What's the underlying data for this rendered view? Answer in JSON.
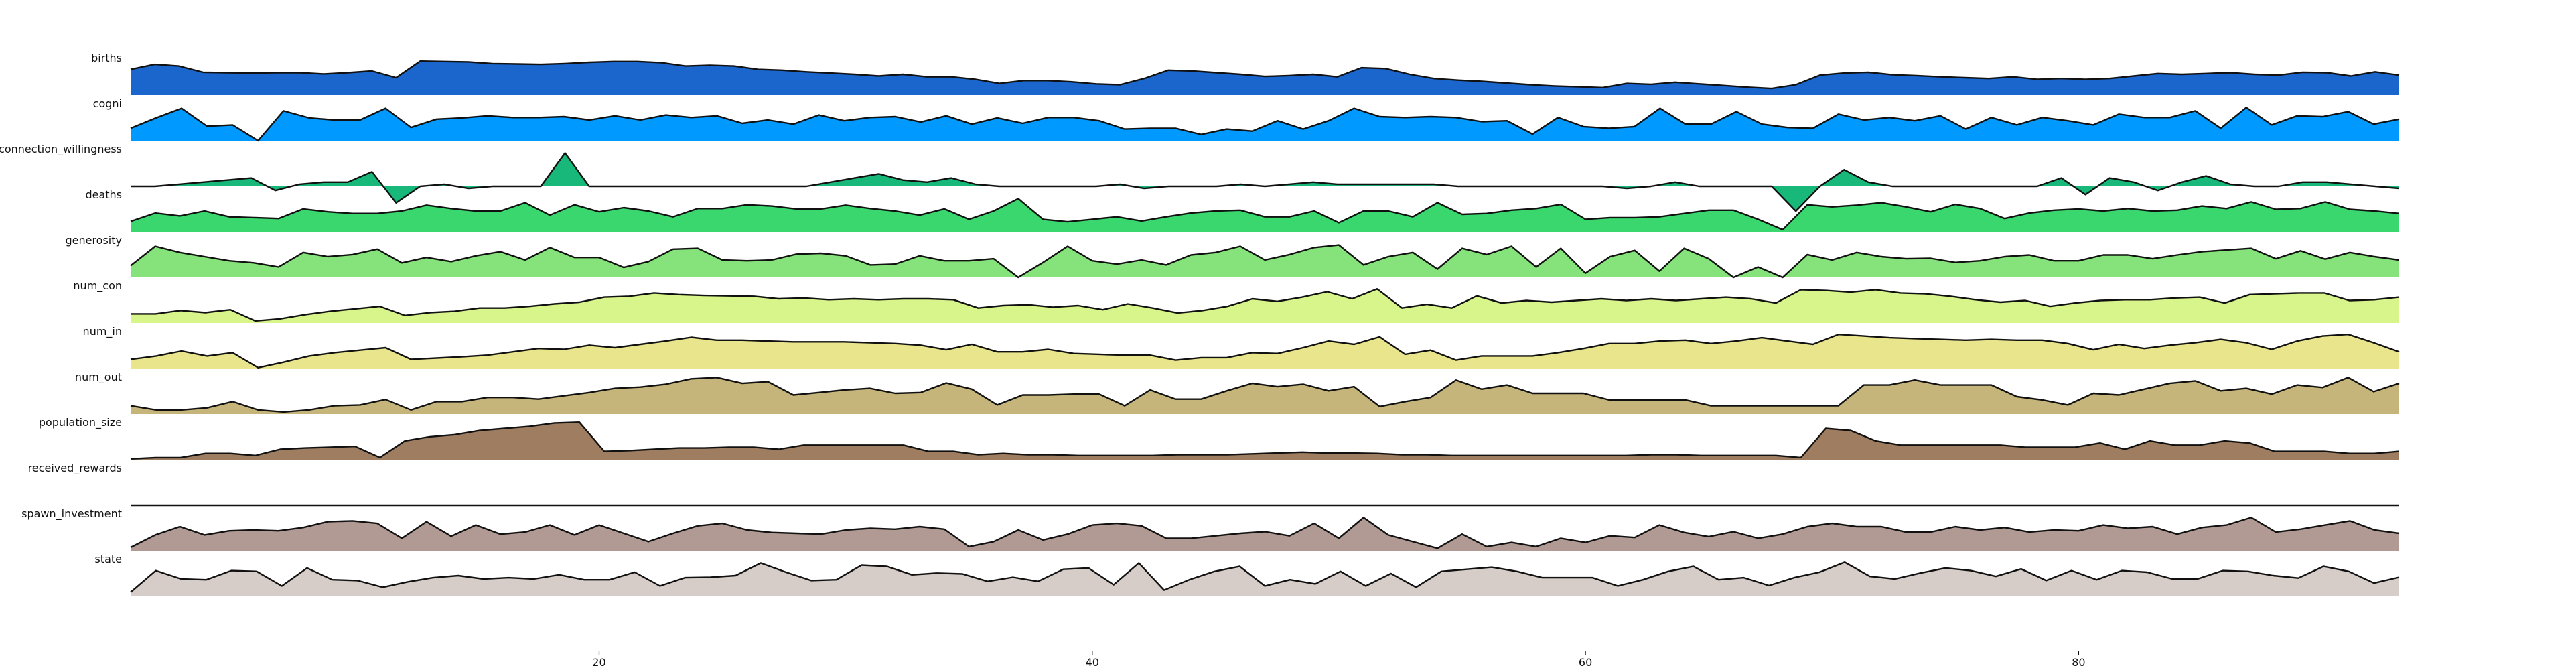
{
  "chart_data": {
    "type": "area",
    "layout": "ridgeline",
    "title": "",
    "xlabel": "",
    "ylabel": "",
    "x_range": [
      1,
      93
    ],
    "x_ticks": [
      20,
      40,
      60,
      80
    ],
    "grid": false,
    "legend": "none",
    "series": [
      {
        "name": "births",
        "color": "#1a66cc",
        "values": [
          0.62,
          0.74,
          0.7,
          0.55,
          0.54,
          0.53,
          0.54,
          0.54,
          0.51,
          0.54,
          0.58,
          0.42,
          0.82,
          0.81,
          0.8,
          0.76,
          0.75,
          0.74,
          0.76,
          0.79,
          0.81,
          0.81,
          0.78,
          0.7,
          0.72,
          0.7,
          0.62,
          0.6,
          0.56,
          0.53,
          0.5,
          0.46,
          0.5,
          0.44,
          0.44,
          0.38,
          0.28,
          0.35,
          0.35,
          0.32,
          0.27,
          0.25,
          0.4,
          0.6,
          0.58,
          0.54,
          0.5,
          0.45,
          0.47,
          0.5,
          0.44,
          0.66,
          0.64,
          0.5,
          0.4,
          0.36,
          0.33,
          0.29,
          0.25,
          0.22,
          0.2,
          0.18,
          0.28,
          0.26,
          0.31,
          0.27,
          0.23,
          0.19,
          0.16,
          0.25,
          0.48,
          0.53,
          0.55,
          0.49,
          0.47,
          0.44,
          0.42,
          0.4,
          0.44,
          0.38,
          0.4,
          0.38,
          0.4,
          0.46,
          0.52,
          0.5,
          0.52,
          0.54,
          0.5,
          0.48,
          0.55,
          0.54,
          0.46,
          0.56,
          0.48
        ]
      },
      {
        "name": "cogni",
        "color": "#0099ff",
        "values": [
          0.3,
          0.55,
          0.78,
          0.35,
          0.38,
          0.0,
          0.72,
          0.55,
          0.5,
          0.5,
          0.78,
          0.32,
          0.52,
          0.55,
          0.6,
          0.56,
          0.56,
          0.58,
          0.5,
          0.6,
          0.5,
          0.62,
          0.56,
          0.6,
          0.42,
          0.5,
          0.4,
          0.62,
          0.48,
          0.56,
          0.58,
          0.45,
          0.6,
          0.4,
          0.55,
          0.42,
          0.56,
          0.56,
          0.48,
          0.28,
          0.3,
          0.3,
          0.15,
          0.28,
          0.23,
          0.48,
          0.28,
          0.48,
          0.78,
          0.58,
          0.56,
          0.58,
          0.56,
          0.46,
          0.48,
          0.16,
          0.56,
          0.34,
          0.3,
          0.34,
          0.78,
          0.4,
          0.4,
          0.7,
          0.4,
          0.32,
          0.3,
          0.64,
          0.5,
          0.56,
          0.48,
          0.6,
          0.28,
          0.56,
          0.38,
          0.56,
          0.48,
          0.38,
          0.64,
          0.56,
          0.56,
          0.72,
          0.3,
          0.8,
          0.38,
          0.6,
          0.58,
          0.7,
          0.4,
          0.52
        ]
      },
      {
        "name": "connection_willingness",
        "color": "#18b87a",
        "values": [
          0.0,
          0.0,
          0.05,
          0.1,
          0.15,
          0.2,
          -0.1,
          0.05,
          0.1,
          0.1,
          0.35,
          -0.4,
          0.0,
          0.05,
          -0.05,
          0.0,
          0.0,
          0.0,
          0.8,
          0.0,
          0.0,
          0.0,
          0.0,
          0.0,
          0.0,
          0.0,
          0.0,
          0.0,
          0.0,
          0.1,
          0.2,
          0.3,
          0.15,
          0.1,
          0.2,
          0.05,
          0.0,
          0.0,
          0.0,
          0.0,
          0.0,
          0.05,
          -0.05,
          0.0,
          0.0,
          0.0,
          0.05,
          0.0,
          0.05,
          0.1,
          0.05,
          0.05,
          0.05,
          0.05,
          0.05,
          0.0,
          0.0,
          0.0,
          0.0,
          0.0,
          0.0,
          0.0,
          -0.05,
          0.0,
          0.1,
          0.0,
          0.0,
          0.0,
          0.0,
          -0.6,
          0.0,
          0.4,
          0.1,
          0.0,
          0.0,
          0.0,
          0.0,
          0.0,
          0.0,
          0.0,
          0.2,
          -0.2,
          0.2,
          0.1,
          -0.1,
          0.1,
          0.25,
          0.05,
          0.0,
          0.0,
          0.1,
          0.1,
          0.05,
          0.0,
          -0.05
        ]
      },
      {
        "name": "deaths",
        "color": "#3ad66e",
        "values": [
          0.25,
          0.45,
          0.38,
          0.5,
          0.36,
          0.34,
          0.32,
          0.55,
          0.48,
          0.44,
          0.44,
          0.5,
          0.64,
          0.56,
          0.5,
          0.5,
          0.7,
          0.4,
          0.65,
          0.48,
          0.58,
          0.5,
          0.36,
          0.56,
          0.56,
          0.65,
          0.62,
          0.55,
          0.55,
          0.64,
          0.56,
          0.5,
          0.4,
          0.55,
          0.3,
          0.5,
          0.8,
          0.3,
          0.24,
          0.3,
          0.36,
          0.26,
          0.36,
          0.45,
          0.5,
          0.52,
          0.36,
          0.36,
          0.5,
          0.22,
          0.5,
          0.5,
          0.36,
          0.7,
          0.42,
          0.44,
          0.52,
          0.56,
          0.66,
          0.3,
          0.34,
          0.34,
          0.36,
          0.44,
          0.52,
          0.52,
          0.3,
          0.05,
          0.65,
          0.6,
          0.64,
          0.7,
          0.6,
          0.48,
          0.66,
          0.56,
          0.32,
          0.45,
          0.52,
          0.55,
          0.5,
          0.56,
          0.5,
          0.52,
          0.62,
          0.56,
          0.72,
          0.54,
          0.56,
          0.72,
          0.54,
          0.5,
          0.44
        ]
      },
      {
        "name": "generosity",
        "color": "#86e27a",
        "values": [
          0.28,
          0.75,
          0.6,
          0.5,
          0.4,
          0.35,
          0.25,
          0.6,
          0.5,
          0.55,
          0.68,
          0.35,
          0.48,
          0.38,
          0.52,
          0.62,
          0.42,
          0.72,
          0.48,
          0.48,
          0.24,
          0.38,
          0.68,
          0.7,
          0.42,
          0.4,
          0.42,
          0.56,
          0.58,
          0.52,
          0.3,
          0.32,
          0.52,
          0.4,
          0.4,
          0.45,
          0.0,
          0.36,
          0.75,
          0.4,
          0.32,
          0.42,
          0.3,
          0.54,
          0.6,
          0.75,
          0.42,
          0.55,
          0.72,
          0.78,
          0.3,
          0.5,
          0.6,
          0.2,
          0.7,
          0.55,
          0.75,
          0.25,
          0.7,
          0.1,
          0.5,
          0.65,
          0.15,
          0.7,
          0.45,
          0.0,
          0.25,
          0.0,
          0.55,
          0.42,
          0.6,
          0.5,
          0.45,
          0.46,
          0.36,
          0.4,
          0.5,
          0.54,
          0.4,
          0.4,
          0.54,
          0.54,
          0.45,
          0.54,
          0.62,
          0.66,
          0.7,
          0.45,
          0.64,
          0.44,
          0.6,
          0.5,
          0.42
        ]
      },
      {
        "name": "num_con",
        "color": "#d7f58a",
        "values": [
          0.22,
          0.22,
          0.3,
          0.25,
          0.32,
          0.05,
          0.1,
          0.2,
          0.28,
          0.34,
          0.4,
          0.18,
          0.25,
          0.28,
          0.36,
          0.36,
          0.4,
          0.46,
          0.5,
          0.62,
          0.64,
          0.72,
          0.68,
          0.66,
          0.65,
          0.64,
          0.58,
          0.6,
          0.56,
          0.58,
          0.56,
          0.58,
          0.58,
          0.56,
          0.36,
          0.42,
          0.44,
          0.38,
          0.42,
          0.32,
          0.46,
          0.36,
          0.24,
          0.3,
          0.4,
          0.58,
          0.52,
          0.62,
          0.75,
          0.58,
          0.82,
          0.36,
          0.45,
          0.36,
          0.65,
          0.48,
          0.54,
          0.5,
          0.54,
          0.58,
          0.54,
          0.58,
          0.54,
          0.58,
          0.62,
          0.58,
          0.48,
          0.8,
          0.78,
          0.74,
          0.8,
          0.72,
          0.7,
          0.64,
          0.56,
          0.5,
          0.54,
          0.4,
          0.48,
          0.54,
          0.56,
          0.56,
          0.6,
          0.62,
          0.48,
          0.68,
          0.7,
          0.72,
          0.72,
          0.54,
          0.56,
          0.62
        ]
      },
      {
        "name": "num_in",
        "color": "#e9e58c",
        "values": [
          0.22,
          0.3,
          0.42,
          0.3,
          0.38,
          0.02,
          0.15,
          0.3,
          0.38,
          0.44,
          0.5,
          0.22,
          0.25,
          0.28,
          0.32,
          0.4,
          0.48,
          0.46,
          0.56,
          0.5,
          0.58,
          0.66,
          0.75,
          0.68,
          0.68,
          0.66,
          0.64,
          0.64,
          0.64,
          0.62,
          0.6,
          0.56,
          0.45,
          0.58,
          0.4,
          0.4,
          0.46,
          0.36,
          0.34,
          0.32,
          0.32,
          0.2,
          0.26,
          0.26,
          0.38,
          0.36,
          0.5,
          0.66,
          0.58,
          0.76,
          0.34,
          0.44,
          0.2,
          0.3,
          0.3,
          0.3,
          0.38,
          0.48,
          0.6,
          0.6,
          0.66,
          0.68,
          0.6,
          0.66,
          0.74,
          0.66,
          0.58,
          0.82,
          0.78,
          0.74,
          0.72,
          0.7,
          0.68,
          0.7,
          0.68,
          0.68,
          0.6,
          0.45,
          0.58,
          0.48,
          0.56,
          0.62,
          0.7,
          0.62,
          0.46,
          0.66,
          0.78,
          0.82,
          0.62,
          0.4
        ]
      },
      {
        "name": "num_out",
        "color": "#c6b57a",
        "values": [
          0.2,
          0.1,
          0.1,
          0.15,
          0.3,
          0.1,
          0.05,
          0.1,
          0.2,
          0.22,
          0.35,
          0.1,
          0.3,
          0.3,
          0.4,
          0.4,
          0.36,
          0.44,
          0.52,
          0.62,
          0.65,
          0.72,
          0.85,
          0.88,
          0.74,
          0.78,
          0.46,
          0.52,
          0.58,
          0.62,
          0.5,
          0.52,
          0.75,
          0.6,
          0.22,
          0.46,
          0.46,
          0.48,
          0.48,
          0.2,
          0.58,
          0.36,
          0.36,
          0.56,
          0.74,
          0.66,
          0.72,
          0.56,
          0.66,
          0.18,
          0.3,
          0.4,
          0.82,
          0.6,
          0.7,
          0.5,
          0.5,
          0.5,
          0.34,
          0.34,
          0.34,
          0.34,
          0.2,
          0.2,
          0.2,
          0.2,
          0.2,
          0.2,
          0.7,
          0.7,
          0.82,
          0.7,
          0.7,
          0.7,
          0.42,
          0.34,
          0.22,
          0.5,
          0.46,
          0.6,
          0.74,
          0.8,
          0.56,
          0.62,
          0.48,
          0.7,
          0.64,
          0.88,
          0.54,
          0.74
        ]
      },
      {
        "name": "population_size",
        "color": "#9e7d60",
        "values": [
          0.02,
          0.05,
          0.05,
          0.15,
          0.15,
          0.1,
          0.25,
          0.28,
          0.3,
          0.32,
          0.05,
          0.45,
          0.55,
          0.6,
          0.7,
          0.75,
          0.8,
          0.88,
          0.9,
          0.2,
          0.22,
          0.25,
          0.28,
          0.28,
          0.3,
          0.3,
          0.25,
          0.35,
          0.35,
          0.35,
          0.35,
          0.35,
          0.2,
          0.2,
          0.12,
          0.15,
          0.12,
          0.12,
          0.1,
          0.1,
          0.1,
          0.1,
          0.12,
          0.12,
          0.12,
          0.14,
          0.16,
          0.18,
          0.16,
          0.16,
          0.15,
          0.12,
          0.12,
          0.1,
          0.1,
          0.1,
          0.1,
          0.1,
          0.1,
          0.1,
          0.1,
          0.12,
          0.12,
          0.1,
          0.1,
          0.1,
          0.1,
          0.05,
          0.75,
          0.7,
          0.45,
          0.35,
          0.35,
          0.35,
          0.35,
          0.35,
          0.3,
          0.3,
          0.3,
          0.4,
          0.25,
          0.45,
          0.35,
          0.35,
          0.45,
          0.4,
          0.2,
          0.2,
          0.2,
          0.15,
          0.15,
          0.2
        ]
      },
      {
        "name": "received_rewards",
        "color": "#c4a38a",
        "values": [
          0,
          0,
          0,
          0,
          0,
          0,
          0,
          0,
          0,
          0,
          0,
          0,
          0,
          0,
          0,
          0,
          0,
          0,
          0,
          0,
          0,
          0,
          0,
          0,
          0,
          0,
          0,
          0,
          0,
          0,
          0,
          0,
          0,
          0,
          0,
          0,
          0,
          0,
          0,
          0,
          0,
          0,
          0,
          0,
          0,
          0,
          0,
          0,
          0,
          0,
          0,
          0,
          0,
          0,
          0,
          0,
          0,
          0,
          0,
          0,
          0,
          0,
          0,
          0,
          0,
          0,
          0,
          0,
          0,
          0,
          0,
          0,
          0,
          0,
          0,
          0,
          0,
          0,
          0,
          0,
          0,
          0,
          0,
          0,
          0,
          0,
          0,
          0,
          0,
          0,
          0,
          0,
          0
        ]
      },
      {
        "name": "spawn_investment",
        "color": "#b19a93",
        "values": [
          0.08,
          0.38,
          0.58,
          0.38,
          0.48,
          0.5,
          0.48,
          0.56,
          0.7,
          0.72,
          0.66,
          0.3,
          0.7,
          0.35,
          0.62,
          0.4,
          0.45,
          0.62,
          0.38,
          0.62,
          0.42,
          0.22,
          0.42,
          0.6,
          0.66,
          0.5,
          0.44,
          0.42,
          0.4,
          0.5,
          0.54,
          0.52,
          0.58,
          0.52,
          0.1,
          0.22,
          0.5,
          0.26,
          0.4,
          0.62,
          0.66,
          0.6,
          0.3,
          0.3,
          0.36,
          0.42,
          0.46,
          0.36,
          0.66,
          0.3,
          0.8,
          0.38,
          0.22,
          0.06,
          0.4,
          0.1,
          0.2,
          0.1,
          0.3,
          0.2,
          0.36,
          0.32,
          0.62,
          0.44,
          0.34,
          0.46,
          0.3,
          0.4,
          0.58,
          0.66,
          0.58,
          0.58,
          0.45,
          0.45,
          0.58,
          0.5,
          0.56,
          0.45,
          0.5,
          0.48,
          0.62,
          0.54,
          0.58,
          0.4,
          0.56,
          0.62,
          0.8,
          0.45,
          0.52,
          0.62,
          0.72,
          0.5,
          0.42
        ]
      },
      {
        "name": "state",
        "color": "#d6ccc8",
        "values": [
          0.1,
          0.62,
          0.42,
          0.4,
          0.62,
          0.6,
          0.25,
          0.68,
          0.4,
          0.38,
          0.22,
          0.35,
          0.45,
          0.5,
          0.42,
          0.45,
          0.42,
          0.52,
          0.4,
          0.4,
          0.58,
          0.25,
          0.45,
          0.46,
          0.5,
          0.8,
          0.58,
          0.38,
          0.4,
          0.75,
          0.72,
          0.52,
          0.56,
          0.54,
          0.36,
          0.46,
          0.36,
          0.65,
          0.68,
          0.28,
          0.8,
          0.15,
          0.4,
          0.6,
          0.72,
          0.25,
          0.4,
          0.3,
          0.6,
          0.25,
          0.55,
          0.22,
          0.6,
          0.65,
          0.7,
          0.6,
          0.45,
          0.45,
          0.45,
          0.25,
          0.4,
          0.6,
          0.72,
          0.4,
          0.45,
          0.26,
          0.45,
          0.58,
          0.82,
          0.48,
          0.42,
          0.56,
          0.68,
          0.62,
          0.48,
          0.66,
          0.38,
          0.62,
          0.4,
          0.62,
          0.58,
          0.42,
          0.42,
          0.62,
          0.6,
          0.5,
          0.44,
          0.72,
          0.6,
          0.32,
          0.46
        ]
      }
    ]
  }
}
